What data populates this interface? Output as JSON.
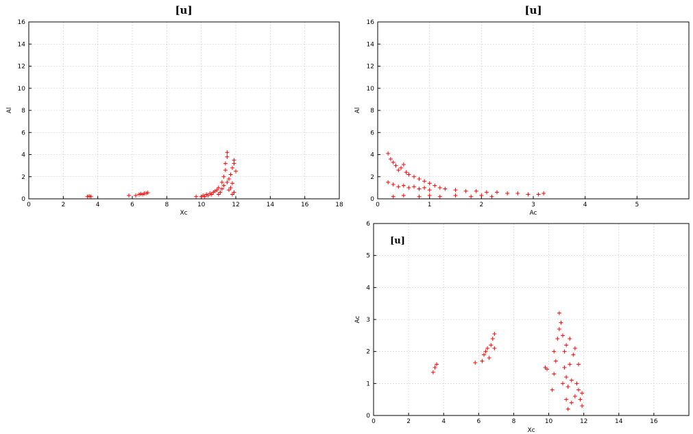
{
  "chart_data": [
    {
      "type": "scatter",
      "title": "[u]",
      "xlabel": "Xc",
      "ylabel": "Al",
      "xlim": [
        0,
        18
      ],
      "ylim": [
        0,
        16
      ],
      "xticks": [
        "0",
        "2",
        "4",
        "6",
        "8",
        "10",
        "12",
        "14",
        "16",
        "18"
      ],
      "yticks": [
        "0",
        "2",
        "4",
        "6",
        "8",
        "10",
        "12",
        "14",
        "16"
      ],
      "grid": true,
      "marker_color": "#ff0000",
      "series": [
        {
          "values": [
            [
              3.4,
              0.2
            ],
            [
              3.5,
              0.25
            ],
            [
              3.6,
              0.2
            ],
            [
              5.8,
              0.3
            ],
            [
              6.2,
              0.3
            ],
            [
              6.4,
              0.4
            ],
            [
              6.5,
              0.45
            ],
            [
              6.6,
              0.4
            ],
            [
              6.7,
              0.5
            ],
            [
              6.8,
              0.5
            ],
            [
              6.9,
              0.55
            ],
            [
              9.7,
              0.2
            ],
            [
              10.0,
              0.2
            ],
            [
              10.1,
              0.3
            ],
            [
              10.2,
              0.2
            ],
            [
              10.3,
              0.4
            ],
            [
              10.4,
              0.3
            ],
            [
              10.5,
              0.5
            ],
            [
              10.6,
              0.4
            ],
            [
              10.7,
              0.6
            ],
            [
              10.8,
              0.7
            ],
            [
              10.9,
              0.8
            ],
            [
              11.0,
              1.0
            ],
            [
              11.0,
              0.4
            ],
            [
              11.1,
              0.6
            ],
            [
              11.2,
              0.9
            ],
            [
              11.2,
              1.5
            ],
            [
              11.3,
              2.0
            ],
            [
              11.3,
              1.2
            ],
            [
              11.4,
              2.6
            ],
            [
              11.4,
              3.2
            ],
            [
              11.5,
              3.8
            ],
            [
              11.5,
              4.2
            ],
            [
              11.5,
              1.5
            ],
            [
              11.6,
              0.8
            ],
            [
              11.6,
              1.8
            ],
            [
              11.7,
              1.0
            ],
            [
              11.7,
              2.2
            ],
            [
              11.8,
              2.8
            ],
            [
              11.8,
              1.4
            ],
            [
              11.9,
              3.2
            ],
            [
              11.9,
              3.5
            ],
            [
              12.0,
              2.5
            ],
            [
              11.9,
              0.6
            ],
            [
              11.8,
              0.4
            ]
          ]
        }
      ]
    },
    {
      "type": "scatter",
      "title": "[u]",
      "xlabel": "Ac",
      "ylabel": "Al",
      "xlim": [
        0,
        6
      ],
      "ylim": [
        0,
        16
      ],
      "xticks": [
        "0",
        "1",
        "2",
        "3",
        "4",
        "5"
      ],
      "yticks": [
        "0",
        "2",
        "4",
        "6",
        "8",
        "10",
        "12",
        "14",
        "16"
      ],
      "grid": true,
      "marker_color": "#ff0000",
      "series": [
        {
          "values": [
            [
              0.2,
              4.1
            ],
            [
              0.25,
              3.6
            ],
            [
              0.3,
              3.3
            ],
            [
              0.35,
              3.0
            ],
            [
              0.4,
              2.6
            ],
            [
              0.45,
              2.8
            ],
            [
              0.5,
              3.1
            ],
            [
              0.55,
              2.4
            ],
            [
              0.6,
              2.2
            ],
            [
              0.7,
              2.0
            ],
            [
              0.8,
              1.8
            ],
            [
              0.9,
              1.6
            ],
            [
              1.0,
              1.4
            ],
            [
              1.1,
              1.2
            ],
            [
              0.2,
              1.5
            ],
            [
              0.3,
              1.3
            ],
            [
              0.4,
              1.1
            ],
            [
              0.5,
              1.2
            ],
            [
              0.6,
              1.0
            ],
            [
              0.7,
              1.1
            ],
            [
              0.8,
              0.9
            ],
            [
              0.9,
              1.0
            ],
            [
              1.0,
              0.8
            ],
            [
              1.2,
              1.0
            ],
            [
              1.3,
              0.9
            ],
            [
              1.5,
              0.8
            ],
            [
              1.7,
              0.7
            ],
            [
              1.9,
              0.7
            ],
            [
              2.1,
              0.6
            ],
            [
              2.3,
              0.6
            ],
            [
              2.5,
              0.5
            ],
            [
              2.7,
              0.5
            ],
            [
              2.9,
              0.4
            ],
            [
              3.1,
              0.4
            ],
            [
              3.2,
              0.5
            ],
            [
              0.3,
              0.2
            ],
            [
              0.5,
              0.3
            ],
            [
              0.8,
              0.2
            ],
            [
              1.0,
              0.3
            ],
            [
              1.2,
              0.2
            ],
            [
              1.5,
              0.3
            ],
            [
              1.8,
              0.2
            ],
            [
              2.0,
              0.3
            ],
            [
              2.2,
              0.2
            ]
          ]
        }
      ]
    },
    {
      "type": "scatter",
      "title": "[u]",
      "xlabel": "Xc",
      "ylabel": "Ac",
      "xlim": [
        0,
        18
      ],
      "ylim": [
        0,
        6
      ],
      "xticks": [
        "0",
        "2",
        "4",
        "6",
        "8",
        "10",
        "12",
        "14",
        "16"
      ],
      "yticks": [
        "0",
        "1",
        "2",
        "3",
        "4",
        "5",
        "6"
      ],
      "grid": true,
      "marker_color": "#ff0000",
      "series": [
        {
          "values": [
            [
              3.4,
              1.35
            ],
            [
              3.5,
              1.5
            ],
            [
              3.6,
              1.6
            ],
            [
              5.8,
              1.65
            ],
            [
              6.2,
              1.7
            ],
            [
              6.3,
              1.9
            ],
            [
              6.4,
              2.0
            ],
            [
              6.5,
              2.1
            ],
            [
              6.6,
              1.8
            ],
            [
              6.7,
              2.2
            ],
            [
              6.8,
              2.4
            ],
            [
              6.9,
              2.55
            ],
            [
              6.9,
              2.1
            ],
            [
              9.8,
              1.5
            ],
            [
              9.9,
              1.45
            ],
            [
              10.2,
              0.8
            ],
            [
              10.3,
              1.3
            ],
            [
              10.3,
              2.0
            ],
            [
              10.4,
              1.7
            ],
            [
              10.5,
              2.4
            ],
            [
              10.6,
              2.7
            ],
            [
              10.6,
              3.2
            ],
            [
              10.7,
              2.9
            ],
            [
              10.8,
              2.5
            ],
            [
              10.8,
              1.0
            ],
            [
              10.9,
              1.5
            ],
            [
              10.9,
              2.0
            ],
            [
              11.0,
              0.5
            ],
            [
              11.0,
              1.2
            ],
            [
              11.0,
              2.2
            ],
            [
              11.1,
              0.2
            ],
            [
              11.1,
              0.9
            ],
            [
              11.2,
              1.6
            ],
            [
              11.2,
              2.4
            ],
            [
              11.3,
              0.4
            ],
            [
              11.3,
              1.1
            ],
            [
              11.4,
              1.9
            ],
            [
              11.5,
              0.6
            ],
            [
              11.5,
              2.1
            ],
            [
              11.6,
              1.0
            ],
            [
              11.7,
              0.8
            ],
            [
              11.8,
              0.5
            ],
            [
              11.9,
              0.3
            ],
            [
              11.9,
              0.7
            ],
            [
              11.7,
              1.6
            ]
          ]
        }
      ]
    }
  ]
}
